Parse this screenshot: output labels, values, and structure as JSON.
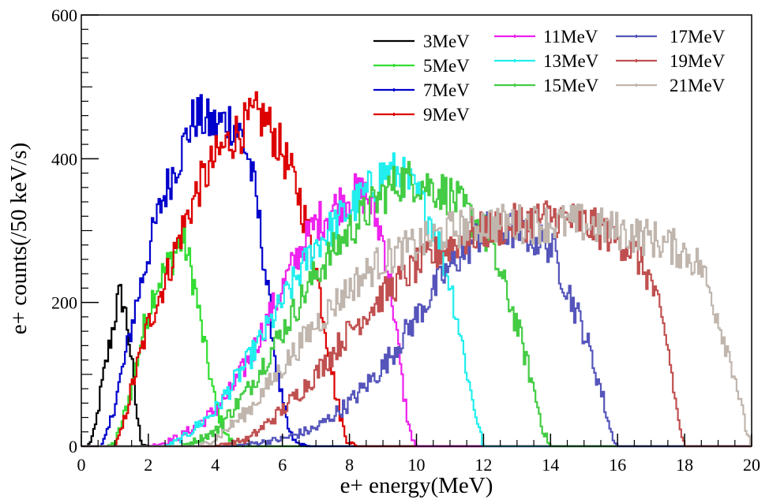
{
  "chart_data": {
    "type": "line",
    "style": "step-histogram",
    "title": "",
    "xlabel": "e+ energy(MeV)",
    "ylabel": "e+ counts(/50 keV/s)",
    "xlim": [
      0,
      20
    ],
    "ylim": [
      0,
      600
    ],
    "x_ticks": [
      "0",
      "2",
      "4",
      "6",
      "8",
      "10",
      "12",
      "14",
      "16",
      "18",
      "20"
    ],
    "y_ticks": [
      "0",
      "200",
      "400",
      "600"
    ],
    "grid": false,
    "legend_position": "top-right",
    "series": [
      {
        "name": "3MeV",
        "color": "#000000",
        "x": [
          0.2,
          0.4,
          0.6,
          0.8,
          1.0,
          1.1,
          1.2,
          1.3,
          1.4,
          1.5,
          1.6,
          1.7,
          1.8,
          2.0
        ],
        "y": [
          0,
          20,
          80,
          130,
          180,
          205,
          210,
          190,
          160,
          120,
          70,
          30,
          5,
          0
        ]
      },
      {
        "name": "5MeV",
        "color": "#33dd33",
        "x": [
          0.8,
          1.0,
          1.2,
          1.5,
          1.8,
          2.0,
          2.2,
          2.5,
          2.8,
          3.0,
          3.1,
          3.2,
          3.4,
          3.6,
          3.8,
          4.0,
          4.2,
          4.4,
          4.6,
          4.8
        ],
        "y": [
          0,
          5,
          30,
          80,
          150,
          190,
          220,
          245,
          270,
          285,
          280,
          260,
          220,
          160,
          110,
          60,
          30,
          10,
          3,
          0
        ]
      },
      {
        "name": "7MeV",
        "color": "#0000cc",
        "x": [
          0.6,
          0.8,
          1.0,
          1.3,
          1.6,
          2.0,
          2.4,
          2.8,
          3.0,
          3.2,
          3.4,
          3.6,
          3.8,
          4.0,
          4.2,
          4.4,
          4.6,
          4.8,
          5.0,
          5.2,
          5.4,
          5.6,
          5.8,
          6.0,
          6.2,
          6.4,
          6.6,
          6.8,
          7.0
        ],
        "y": [
          0,
          20,
          60,
          120,
          190,
          270,
          340,
          390,
          410,
          440,
          460,
          455,
          450,
          445,
          450,
          455,
          445,
          430,
          400,
          350,
          280,
          200,
          120,
          60,
          20,
          5,
          2,
          0,
          0
        ]
      },
      {
        "name": "9MeV",
        "color": "#dd0000",
        "x": [
          1.0,
          1.2,
          1.5,
          2.0,
          2.5,
          3.0,
          3.5,
          4.0,
          4.5,
          5.0,
          5.2,
          5.5,
          6.0,
          6.5,
          7.0,
          7.3,
          7.6,
          7.9,
          8.2
        ],
        "y": [
          0,
          20,
          80,
          170,
          230,
          300,
          360,
          400,
          430,
          450,
          460,
          455,
          410,
          350,
          250,
          160,
          70,
          10,
          0
        ]
      },
      {
        "name": "11MeV",
        "color": "#ee22ee",
        "x": [
          2.0,
          2.5,
          3.0,
          3.5,
          4.0,
          4.5,
          5.0,
          5.5,
          6.0,
          6.5,
          7.0,
          7.5,
          8.0,
          8.5,
          9.0,
          9.3,
          9.6,
          9.8,
          10.0
        ],
        "y": [
          0,
          5,
          15,
          30,
          50,
          80,
          120,
          170,
          220,
          270,
          310,
          330,
          350,
          350,
          290,
          200,
          80,
          20,
          0
        ]
      },
      {
        "name": "13MeV",
        "color": "#22eeee",
        "x": [
          2.5,
          3.0,
          4.0,
          5.0,
          6.0,
          7.0,
          8.0,
          8.5,
          9.0,
          9.5,
          10.0,
          10.5,
          11.0,
          11.3,
          11.6,
          11.9,
          12.0
        ],
        "y": [
          0,
          10,
          50,
          120,
          200,
          280,
          330,
          350,
          380,
          380,
          350,
          310,
          230,
          160,
          80,
          20,
          0
        ]
      },
      {
        "name": "15MeV",
        "color": "#44cc44",
        "x": [
          3.0,
          4.0,
          5.0,
          6.0,
          7.0,
          8.0,
          9.0,
          9.5,
          10.0,
          11.0,
          12.0,
          12.5,
          13.0,
          13.5,
          13.8,
          14.0
        ],
        "y": [
          0,
          20,
          80,
          160,
          240,
          300,
          350,
          370,
          370,
          350,
          300,
          240,
          170,
          80,
          20,
          0
        ]
      },
      {
        "name": "17MeV",
        "color": "#5555bb",
        "x": [
          4.5,
          5.0,
          6.0,
          7.0,
          8.0,
          9.0,
          10.0,
          11.0,
          12.0,
          12.5,
          13.0,
          14.0,
          14.5,
          15.0,
          15.5,
          15.8,
          16.0
        ],
        "y": [
          0,
          3,
          10,
          25,
          60,
          110,
          180,
          250,
          300,
          300,
          300,
          280,
          220,
          160,
          80,
          20,
          0
        ]
      },
      {
        "name": "19MeV",
        "color": "#c05050",
        "x": [
          4.0,
          5.0,
          6.0,
          7.0,
          8.0,
          9.0,
          10.0,
          11.0,
          12.0,
          13.0,
          14.0,
          15.0,
          16.0,
          16.5,
          17.0,
          17.5,
          17.8,
          18.0
        ],
        "y": [
          0,
          10,
          50,
          100,
          160,
          210,
          250,
          280,
          300,
          310,
          320,
          310,
          290,
          270,
          230,
          140,
          40,
          0
        ]
      },
      {
        "name": "21MeV",
        "color": "#c0b6ae",
        "x": [
          3.5,
          4.0,
          5.0,
          6.0,
          7.0,
          8.0,
          9.0,
          10.0,
          11.0,
          12.0,
          13.0,
          14.0,
          15.0,
          16.0,
          17.0,
          18.0,
          18.5,
          19.0,
          19.5,
          19.8,
          20.0
        ],
        "y": [
          0,
          10,
          50,
          110,
          170,
          220,
          260,
          280,
          300,
          310,
          310,
          310,
          310,
          300,
          290,
          270,
          250,
          180,
          100,
          30,
          0
        ]
      }
    ]
  }
}
